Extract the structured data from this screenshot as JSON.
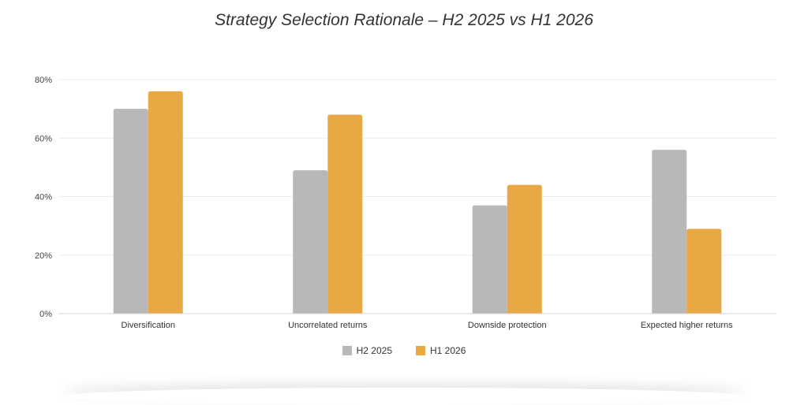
{
  "chart_data": {
    "type": "bar",
    "title": "Strategy Selection Rationale – H2 2025 vs H1 2026",
    "categories": [
      "Diversification",
      "Uncorrelated returns",
      "Downside protection",
      "Expected higher returns"
    ],
    "series": [
      {
        "name": "H2 2025",
        "color": "#b8b8b8",
        "values": [
          70,
          49,
          37,
          56
        ]
      },
      {
        "name": "H1 2026",
        "color": "#e8a844",
        "values": [
          76,
          68,
          44,
          29
        ]
      }
    ],
    "ylim": [
      0,
      80
    ],
    "yticks": [
      0,
      20,
      40,
      60,
      80
    ],
    "ytick_labels": [
      "0%",
      "20%",
      "40%",
      "60%",
      "80%"
    ],
    "xlabel": "",
    "ylabel": "",
    "grid": true,
    "legend_position": "bottom-center"
  }
}
